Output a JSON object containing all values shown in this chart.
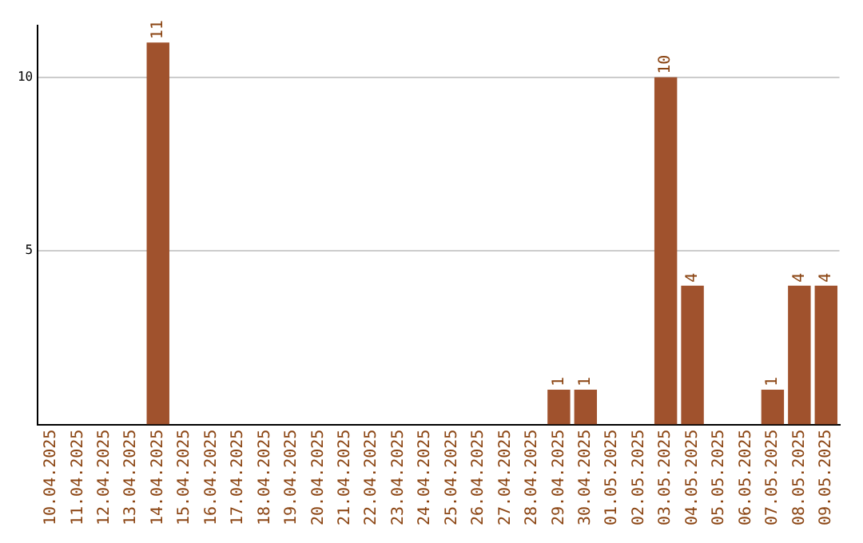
{
  "chart_data": {
    "type": "bar",
    "categories": [
      "10.04.2025",
      "11.04.2025",
      "12.04.2025",
      "13.04.2025",
      "14.04.2025",
      "15.04.2025",
      "16.04.2025",
      "17.04.2025",
      "18.04.2025",
      "19.04.2025",
      "20.04.2025",
      "21.04.2025",
      "22.04.2025",
      "23.04.2025",
      "24.04.2025",
      "25.04.2025",
      "26.04.2025",
      "27.04.2025",
      "28.04.2025",
      "29.04.2025",
      "30.04.2025",
      "01.05.2025",
      "02.05.2025",
      "03.05.2025",
      "04.05.2025",
      "05.05.2025",
      "06.05.2025",
      "07.05.2025",
      "08.05.2025",
      "09.05.2025"
    ],
    "values": [
      0,
      0,
      0,
      0,
      11,
      0,
      0,
      0,
      0,
      0,
      0,
      0,
      0,
      0,
      0,
      0,
      0,
      0,
      0,
      1,
      1,
      0,
      0,
      10,
      4,
      0,
      0,
      1,
      4,
      4
    ],
    "value_labels": [
      null,
      null,
      null,
      null,
      "11",
      null,
      null,
      null,
      null,
      null,
      null,
      null,
      null,
      null,
      null,
      null,
      null,
      null,
      null,
      "1",
      "1",
      null,
      null,
      "10",
      "4",
      null,
      null,
      "1",
      "4",
      "4"
    ],
    "color": "#a0522d",
    "ylim": [
      0,
      11.5
    ],
    "yticks": [
      5,
      10
    ],
    "grid": "y",
    "legend": false
  }
}
